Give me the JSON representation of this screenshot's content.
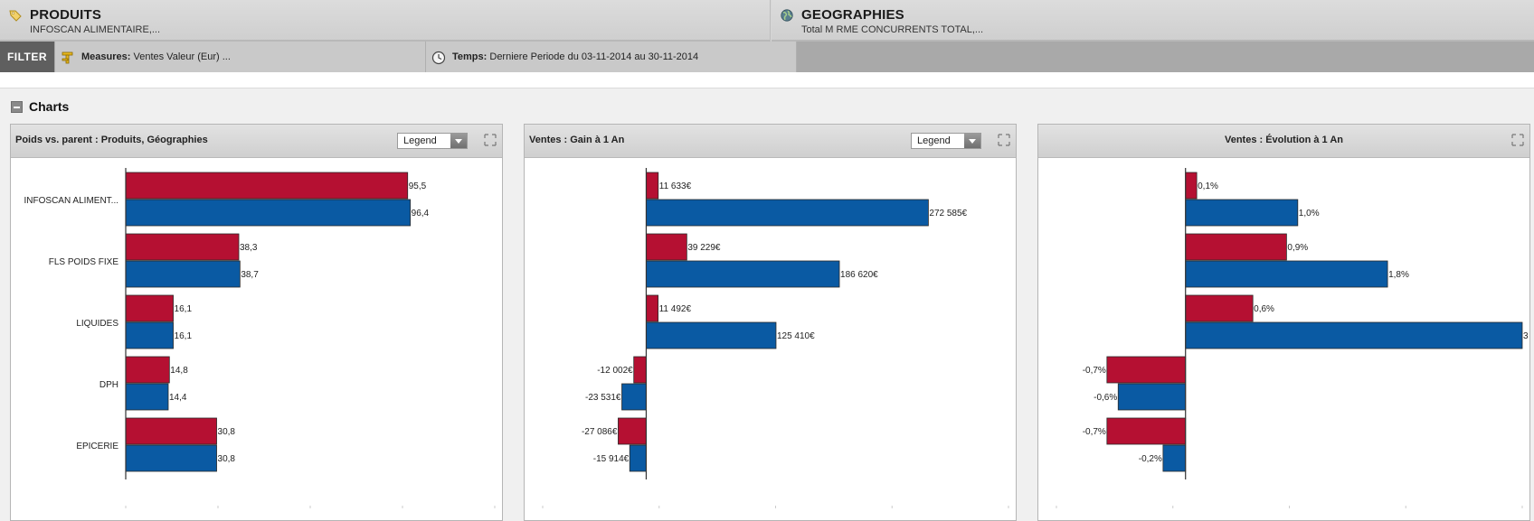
{
  "header": {
    "produits": {
      "title": "PRODUITS",
      "subtitle": "INFOSCAN ALIMENTAIRE,...",
      "icon": "tag-icon"
    },
    "geographies": {
      "title": "GEOGRAPHIES",
      "subtitle": "Total M RME CONCURRENTS TOTAL,...",
      "icon": "globe-icon"
    }
  },
  "filter": {
    "label": "FILTER",
    "measures_label": "Measures:",
    "measures_value": "Ventes Valeur (Eur) ...",
    "temps_label": "Temps:",
    "temps_value": "Derniere Periode du 03-11-2014 au 30-11-2014"
  },
  "section": {
    "title": "Charts"
  },
  "colors": {
    "series1": "#b51032",
    "series2": "#0a5aa3"
  },
  "panels": {
    "p1": {
      "title": "Poids vs. parent : Produits, Géographies",
      "legend": "Legend"
    },
    "p2": {
      "title": "Ventes : Gain à 1 An",
      "legend": "Legend"
    },
    "p3": {
      "title": "Ventes : Évolution à 1 An"
    }
  },
  "chart_data": [
    {
      "type": "bar",
      "title": "Poids vs. parent : Produits, Géographies",
      "categories": [
        "INFOSCAN ALIMENT...",
        "FLS POIDS FIXE",
        "LIQUIDES",
        "DPH",
        "EPICERIE"
      ],
      "series": [
        {
          "values": [
            95.5,
            38.3,
            16.1,
            14.8,
            30.8
          ],
          "labels": [
            "95,5",
            "38,3",
            "16,1",
            "14,8",
            "30,8"
          ]
        },
        {
          "values": [
            96.4,
            38.7,
            16.1,
            14.4,
            30.8
          ],
          "labels": [
            "96,4",
            "38,7",
            "16,1",
            "14,4",
            "30,8"
          ]
        }
      ],
      "xlim": [
        0,
        125
      ],
      "grid": false
    },
    {
      "type": "bar",
      "title": "Ventes : Gain à 1 An",
      "categories": [
        "",
        "",
        "",
        "",
        ""
      ],
      "series": [
        {
          "values": [
            11633,
            39229,
            11492,
            -12002,
            -27086
          ],
          "labels": [
            "11 633€",
            "39 229€",
            "11 492€",
            "-12 002€",
            "-27 086€"
          ]
        },
        {
          "values": [
            272585,
            186620,
            125410,
            -23531,
            -15914
          ],
          "labels": [
            "272 585€",
            "186 620€",
            "125 410€",
            "-23 531€",
            "-15 914€"
          ]
        }
      ],
      "xlim": [
        -100000,
        350000
      ],
      "grid": false
    },
    {
      "type": "bar",
      "title": "Ventes : Évolution à 1 An",
      "categories": [
        "",
        "",
        "",
        "",
        ""
      ],
      "series": [
        {
          "values": [
            0.1,
            0.9,
            0.6,
            -0.7,
            -0.7
          ],
          "labels": [
            "0,1%",
            "0,9%",
            "0,6%",
            "-0,7%",
            "-0,7%"
          ]
        },
        {
          "values": [
            1.0,
            1.8,
            3.0,
            -0.6,
            -0.2
          ],
          "labels": [
            "1,0%",
            "1,8%",
            "3",
            "-0,6%",
            "-0,2%"
          ]
        }
      ],
      "xlim": [
        -1.15,
        3.0
      ],
      "grid": false
    }
  ]
}
